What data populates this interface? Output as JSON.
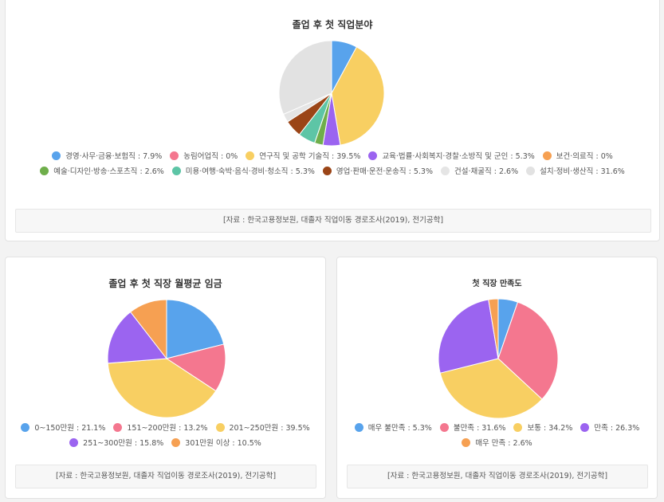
{
  "source_text": "[자료 : 한국고용정보원, 대졸자 직업이동 경로조사(2019), 전기공학]",
  "chart_data": [
    {
      "type": "pie",
      "title": "졸업 후 첫 직업분야",
      "slices": [
        {
          "label": "경영·사무·금융·보험직",
          "value": 7.9,
          "display": "7.9%",
          "color": "#58a3ec"
        },
        {
          "label": "농림어업직",
          "value": 0,
          "display": "0%",
          "color": "#f4778f"
        },
        {
          "label": "연구직 및 공학 기술직",
          "value": 39.5,
          "display": "39.5%",
          "color": "#f8cf62"
        },
        {
          "label": "교육·법률·사회복지·경찰·소방직 및 군인",
          "value": 5.3,
          "display": "5.3%",
          "color": "#9b64f0"
        },
        {
          "label": "보건·의료직",
          "value": 0,
          "display": "0%",
          "color": "#f6a052"
        },
        {
          "label": "예술·디자인·방송·스포츠직",
          "value": 2.6,
          "display": "2.6%",
          "color": "#6fae4b"
        },
        {
          "label": "미용·여행·숙박·음식·경비·청소직",
          "value": 5.3,
          "display": "5.3%",
          "color": "#5dc5a6"
        },
        {
          "label": "영업·판매·운전·운송직",
          "value": 5.3,
          "display": "5.3%",
          "color": "#9b4517"
        },
        {
          "label": "건설·채굴직",
          "value": 2.6,
          "display": "2.6%",
          "color": "#e5e5e5"
        },
        {
          "label": "설치·정비·생산직",
          "value": 31.6,
          "display": "31.6%",
          "color": "#e2e2e2"
        }
      ]
    },
    {
      "type": "pie",
      "title": "졸업 후 첫 직장 월평균 임금",
      "slices": [
        {
          "label": "0~150만원",
          "value": 21.1,
          "display": "21.1%",
          "color": "#58a3ec"
        },
        {
          "label": "151~200만원",
          "value": 13.2,
          "display": "13.2%",
          "color": "#f4778f"
        },
        {
          "label": "201~250만원",
          "value": 39.5,
          "display": "39.5%",
          "color": "#f8cf62"
        },
        {
          "label": "251~300만원",
          "value": 15.8,
          "display": "15.8%",
          "color": "#9b64f0"
        },
        {
          "label": "301만원 이상",
          "value": 10.5,
          "display": "10.5%",
          "color": "#f6a052"
        }
      ]
    },
    {
      "type": "pie",
      "title": "첫 직장 만족도",
      "slices": [
        {
          "label": "매우 불만족",
          "value": 5.3,
          "display": "5.3%",
          "color": "#58a3ec"
        },
        {
          "label": "불만족",
          "value": 31.6,
          "display": "31.6%",
          "color": "#f4778f"
        },
        {
          "label": "보통",
          "value": 34.2,
          "display": "34.2%",
          "color": "#f8cf62"
        },
        {
          "label": "만족",
          "value": 26.3,
          "display": "26.3%",
          "color": "#9b64f0"
        },
        {
          "label": "매우 만족",
          "value": 2.6,
          "display": "2.6%",
          "color": "#f6a052"
        }
      ]
    }
  ]
}
